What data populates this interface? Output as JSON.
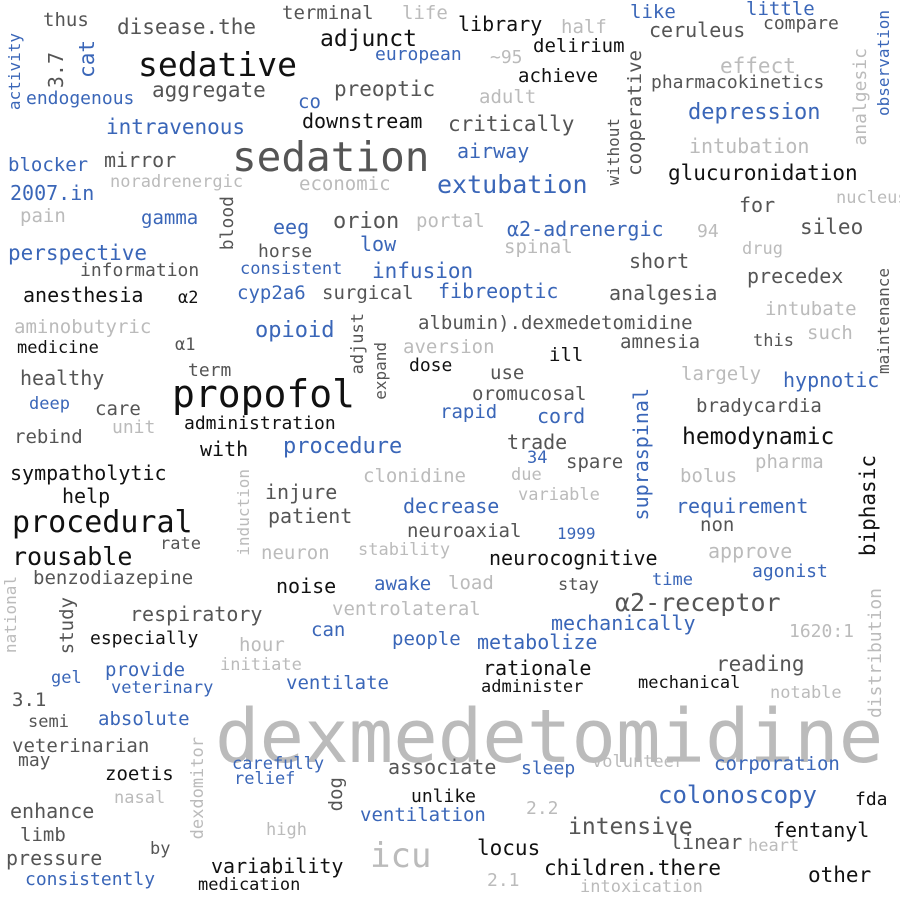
{
  "palette": {
    "black": "#111111",
    "dark_gray": "#555555",
    "light_gray": "#bbbbbb",
    "blue": "#3a66b8"
  },
  "words": [
    {
      "text": "dexmedetomidine",
      "color": "light_gray",
      "vertical": false
    },
    {
      "text": "sedation",
      "color": "dark_gray",
      "vertical": false
    },
    {
      "text": "propofol",
      "color": "black",
      "vertical": false
    },
    {
      "text": "sedative",
      "color": "black",
      "vertical": false
    },
    {
      "text": "icu",
      "color": "light_gray",
      "vertical": false
    },
    {
      "text": "procedural",
      "color": "black",
      "vertical": false
    },
    {
      "text": "rousable",
      "color": "black",
      "vertical": false
    },
    {
      "text": "extubation",
      "color": "blue",
      "vertical": false
    },
    {
      "text": "α2-receptor",
      "color": "dark_gray",
      "vertical": false
    },
    {
      "text": "colonoscopy",
      "color": "blue",
      "vertical": false
    },
    {
      "text": "intensive",
      "color": "dark_gray",
      "vertical": false
    },
    {
      "text": "hemodynamic",
      "color": "black",
      "vertical": false
    },
    {
      "text": "intravenous",
      "color": "blue",
      "vertical": false
    },
    {
      "text": "depression",
      "color": "blue",
      "vertical": false
    },
    {
      "text": "adjunct",
      "color": "black",
      "vertical": false
    },
    {
      "text": "glucuronidation",
      "color": "black",
      "vertical": false
    },
    {
      "text": "critically",
      "color": "dark_gray",
      "vertical": false
    },
    {
      "text": "downstream",
      "color": "black",
      "vertical": false
    },
    {
      "text": "aggregate",
      "color": "dark_gray",
      "vertical": false
    },
    {
      "text": "preoptic",
      "color": "dark_gray",
      "vertical": false
    },
    {
      "text": "achieve",
      "color": "black",
      "vertical": false
    },
    {
      "text": "delirium",
      "color": "black",
      "vertical": false
    },
    {
      "text": "library",
      "color": "black",
      "vertical": false
    },
    {
      "text": "ceruleus",
      "color": "dark_gray",
      "vertical": false
    },
    {
      "text": "disease.the",
      "color": "dark_gray",
      "vertical": false
    },
    {
      "text": "terminal",
      "color": "dark_gray",
      "vertical": false
    },
    {
      "text": "life",
      "color": "light_gray",
      "vertical": false
    },
    {
      "text": "half",
      "color": "light_gray",
      "vertical": false
    },
    {
      "text": "like",
      "color": "blue",
      "vertical": false
    },
    {
      "text": "little",
      "color": "blue",
      "vertical": false
    },
    {
      "text": "compare",
      "color": "dark_gray",
      "vertical": false
    },
    {
      "text": "effect",
      "color": "light_gray",
      "vertical": false
    },
    {
      "text": "pharmacokinetics",
      "color": "dark_gray",
      "vertical": false
    },
    {
      "text": "thus",
      "color": "dark_gray",
      "vertical": false
    },
    {
      "text": "european",
      "color": "blue",
      "vertical": false
    },
    {
      "text": "~95",
      "color": "light_gray",
      "vertical": false
    },
    {
      "text": "adult",
      "color": "light_gray",
      "vertical": false
    },
    {
      "text": "co",
      "color": "blue",
      "vertical": false
    },
    {
      "text": "endogenous",
      "color": "blue",
      "vertical": false
    },
    {
      "text": "intubation",
      "color": "light_gray",
      "vertical": false
    },
    {
      "text": "airway",
      "color": "blue",
      "vertical": false
    },
    {
      "text": "mirror",
      "color": "dark_gray",
      "vertical": false
    },
    {
      "text": "blocker",
      "color": "blue",
      "vertical": false
    },
    {
      "text": "noradrenergic",
      "color": "light_gray",
      "vertical": false
    },
    {
      "text": "economic",
      "color": "light_gray",
      "vertical": false
    },
    {
      "text": "2007.in",
      "color": "blue",
      "vertical": false
    },
    {
      "text": "pain",
      "color": "light_gray",
      "vertical": false
    },
    {
      "text": "gamma",
      "color": "blue",
      "vertical": false
    },
    {
      "text": "eeg",
      "color": "blue",
      "vertical": false
    },
    {
      "text": "orion",
      "color": "dark_gray",
      "vertical": false
    },
    {
      "text": "portal",
      "color": "light_gray",
      "vertical": false
    },
    {
      "text": "α2-adrenergic",
      "color": "blue",
      "vertical": false
    },
    {
      "text": "94",
      "color": "light_gray",
      "vertical": false
    },
    {
      "text": "for",
      "color": "dark_gray",
      "vertical": false
    },
    {
      "text": "nucleus",
      "color": "light_gray",
      "vertical": false
    },
    {
      "text": "sileo",
      "color": "dark_gray",
      "vertical": false
    },
    {
      "text": "perspective",
      "color": "blue",
      "vertical": false
    },
    {
      "text": "horse",
      "color": "dark_gray",
      "vertical": false
    },
    {
      "text": "low",
      "color": "blue",
      "vertical": false
    },
    {
      "text": "spinal",
      "color": "light_gray",
      "vertical": false
    },
    {
      "text": "short",
      "color": "dark_gray",
      "vertical": false
    },
    {
      "text": "drug",
      "color": "light_gray",
      "vertical": false
    },
    {
      "text": "information",
      "color": "dark_gray",
      "vertical": false
    },
    {
      "text": "consistent",
      "color": "blue",
      "vertical": false
    },
    {
      "text": "infusion",
      "color": "blue",
      "vertical": false
    },
    {
      "text": "precedex",
      "color": "dark_gray",
      "vertical": false
    },
    {
      "text": "anesthesia",
      "color": "black",
      "vertical": false
    },
    {
      "text": "α2",
      "color": "black",
      "vertical": false
    },
    {
      "text": "cyp2a6",
      "color": "blue",
      "vertical": false
    },
    {
      "text": "surgical",
      "color": "dark_gray",
      "vertical": false
    },
    {
      "text": "fibreoptic",
      "color": "blue",
      "vertical": false
    },
    {
      "text": "analgesia",
      "color": "dark_gray",
      "vertical": false
    },
    {
      "text": "intubate",
      "color": "light_gray",
      "vertical": false
    },
    {
      "text": "aminobutyric",
      "color": "light_gray",
      "vertical": false
    },
    {
      "text": "opioid",
      "color": "blue",
      "vertical": false
    },
    {
      "text": "albumin).dexmedetomidine",
      "color": "dark_gray",
      "vertical": false
    },
    {
      "text": "such",
      "color": "light_gray",
      "vertical": false
    },
    {
      "text": "medicine",
      "color": "black",
      "vertical": false
    },
    {
      "text": "α1",
      "color": "dark_gray",
      "vertical": false
    },
    {
      "text": "aversion",
      "color": "light_gray",
      "vertical": false
    },
    {
      "text": "amnesia",
      "color": "dark_gray",
      "vertical": false
    },
    {
      "text": "this",
      "color": "dark_gray",
      "vertical": false
    },
    {
      "text": "ill",
      "color": "black",
      "vertical": false
    },
    {
      "text": "dose",
      "color": "black",
      "vertical": false
    },
    {
      "text": "term",
      "color": "dark_gray",
      "vertical": false
    },
    {
      "text": "healthy",
      "color": "dark_gray",
      "vertical": false
    },
    {
      "text": "use",
      "color": "dark_gray",
      "vertical": false
    },
    {
      "text": "largely",
      "color": "light_gray",
      "vertical": false
    },
    {
      "text": "hypnotic",
      "color": "blue",
      "vertical": false
    },
    {
      "text": "oromucosal",
      "color": "dark_gray",
      "vertical": false
    },
    {
      "text": "deep",
      "color": "blue",
      "vertical": false
    },
    {
      "text": "care",
      "color": "dark_gray",
      "vertical": false
    },
    {
      "text": "rapid",
      "color": "blue",
      "vertical": false
    },
    {
      "text": "cord",
      "color": "blue",
      "vertical": false
    },
    {
      "text": "bradycardia",
      "color": "dark_gray",
      "vertical": false
    },
    {
      "text": "unit",
      "color": "light_gray",
      "vertical": false
    },
    {
      "text": "administration",
      "color": "black",
      "vertical": false
    },
    {
      "text": "rebind",
      "color": "dark_gray",
      "vertical": false
    },
    {
      "text": "with",
      "color": "black",
      "vertical": false
    },
    {
      "text": "procedure",
      "color": "blue",
      "vertical": false
    },
    {
      "text": "trade",
      "color": "dark_gray",
      "vertical": false
    },
    {
      "text": "34",
      "color": "blue",
      "vertical": false
    },
    {
      "text": "spare",
      "color": "dark_gray",
      "vertical": false
    },
    {
      "text": "pharma",
      "color": "light_gray",
      "vertical": false
    },
    {
      "text": "sympatholytic",
      "color": "black",
      "vertical": false
    },
    {
      "text": "clonidine",
      "color": "light_gray",
      "vertical": false
    },
    {
      "text": "due",
      "color": "light_gray",
      "vertical": false
    },
    {
      "text": "bolus",
      "color": "light_gray",
      "vertical": false
    },
    {
      "text": "help",
      "color": "black",
      "vertical": false
    },
    {
      "text": "injure",
      "color": "dark_gray",
      "vertical": false
    },
    {
      "text": "variable",
      "color": "light_gray",
      "vertical": false
    },
    {
      "text": "decrease",
      "color": "blue",
      "vertical": false
    },
    {
      "text": "requirement",
      "color": "blue",
      "vertical": false
    },
    {
      "text": "patient",
      "color": "dark_gray",
      "vertical": false
    },
    {
      "text": "non",
      "color": "dark_gray",
      "vertical": false
    },
    {
      "text": "neuroaxial",
      "color": "dark_gray",
      "vertical": false
    },
    {
      "text": "1999",
      "color": "blue",
      "vertical": false
    },
    {
      "text": "rate",
      "color": "dark_gray",
      "vertical": false
    },
    {
      "text": "neuron",
      "color": "light_gray",
      "vertical": false
    },
    {
      "text": "stability",
      "color": "light_gray",
      "vertical": false
    },
    {
      "text": "neurocognitive",
      "color": "black",
      "vertical": false
    },
    {
      "text": "approve",
      "color": "light_gray",
      "vertical": false
    },
    {
      "text": "benzodiazepine",
      "color": "dark_gray",
      "vertical": false
    },
    {
      "text": "noise",
      "color": "black",
      "vertical": false
    },
    {
      "text": "awake",
      "color": "blue",
      "vertical": false
    },
    {
      "text": "load",
      "color": "light_gray",
      "vertical": false
    },
    {
      "text": "stay",
      "color": "dark_gray",
      "vertical": false
    },
    {
      "text": "time",
      "color": "blue",
      "vertical": false
    },
    {
      "text": "agonist",
      "color": "blue",
      "vertical": false
    },
    {
      "text": "respiratory",
      "color": "dark_gray",
      "vertical": false
    },
    {
      "text": "ventrolateral",
      "color": "light_gray",
      "vertical": false
    },
    {
      "text": "mechanically",
      "color": "blue",
      "vertical": false
    },
    {
      "text": "1620:1",
      "color": "light_gray",
      "vertical": false
    },
    {
      "text": "especially",
      "color": "black",
      "vertical": false
    },
    {
      "text": "hour",
      "color": "light_gray",
      "vertical": false
    },
    {
      "text": "can",
      "color": "blue",
      "vertical": false
    },
    {
      "text": "people",
      "color": "blue",
      "vertical": false
    },
    {
      "text": "metabolize",
      "color": "blue",
      "vertical": false
    },
    {
      "text": "reading",
      "color": "dark_gray",
      "vertical": false
    },
    {
      "text": "provide",
      "color": "blue",
      "vertical": false
    },
    {
      "text": "initiate",
      "color": "light_gray",
      "vertical": false
    },
    {
      "text": "rationale",
      "color": "black",
      "vertical": false
    },
    {
      "text": "gel",
      "color": "blue",
      "vertical": false
    },
    {
      "text": "veterinary",
      "color": "blue",
      "vertical": false
    },
    {
      "text": "ventilate",
      "color": "blue",
      "vertical": false
    },
    {
      "text": "administer",
      "color": "black",
      "vertical": false
    },
    {
      "text": "mechanical",
      "color": "black",
      "vertical": false
    },
    {
      "text": "notable",
      "color": "light_gray",
      "vertical": false
    },
    {
      "text": "3.1",
      "color": "dark_gray",
      "vertical": false
    },
    {
      "text": "semi",
      "color": "dark_gray",
      "vertical": false
    },
    {
      "text": "absolute",
      "color": "blue",
      "vertical": false
    },
    {
      "text": "veterinarian",
      "color": "dark_gray",
      "vertical": false
    },
    {
      "text": "may",
      "color": "dark_gray",
      "vertical": false
    },
    {
      "text": "carefully",
      "color": "blue",
      "vertical": false
    },
    {
      "text": "relief",
      "color": "blue",
      "vertical": false
    },
    {
      "text": "associate",
      "color": "dark_gray",
      "vertical": false
    },
    {
      "text": "sleep",
      "color": "blue",
      "vertical": false
    },
    {
      "text": "volunteer",
      "color": "light_gray",
      "vertical": false
    },
    {
      "text": "corporation",
      "color": "blue",
      "vertical": false
    },
    {
      "text": "zoetis",
      "color": "black",
      "vertical": false
    },
    {
      "text": "nasal",
      "color": "light_gray",
      "vertical": false
    },
    {
      "text": "unlike",
      "color": "black",
      "vertical": false
    },
    {
      "text": "2.2",
      "color": "light_gray",
      "vertical": false
    },
    {
      "text": "fda",
      "color": "black",
      "vertical": false
    },
    {
      "text": "enhance",
      "color": "dark_gray",
      "vertical": false
    },
    {
      "text": "ventilation",
      "color": "blue",
      "vertical": false
    },
    {
      "text": "limb",
      "color": "dark_gray",
      "vertical": false
    },
    {
      "text": "high",
      "color": "light_gray",
      "vertical": false
    },
    {
      "text": "fentanyl",
      "color": "black",
      "vertical": false
    },
    {
      "text": "linear",
      "color": "dark_gray",
      "vertical": false
    },
    {
      "text": "locus",
      "color": "black",
      "vertical": false
    },
    {
      "text": "heart",
      "color": "light_gray",
      "vertical": false
    },
    {
      "text": "pressure",
      "color": "dark_gray",
      "vertical": false
    },
    {
      "text": "by",
      "color": "dark_gray",
      "vertical": false
    },
    {
      "text": "variability",
      "color": "black",
      "vertical": false
    },
    {
      "text": "children.there",
      "color": "black",
      "vertical": false
    },
    {
      "text": "other",
      "color": "black",
      "vertical": false
    },
    {
      "text": "consistently",
      "color": "blue",
      "vertical": false
    },
    {
      "text": "medication",
      "color": "black",
      "vertical": false
    },
    {
      "text": "2.1",
      "color": "light_gray",
      "vertical": false
    },
    {
      "text": "intoxication",
      "color": "light_gray",
      "vertical": false
    },
    {
      "text": "3.7",
      "color": "dark_gray",
      "vertical": true
    },
    {
      "text": "cat",
      "color": "blue",
      "vertical": true
    },
    {
      "text": "activity",
      "color": "blue",
      "vertical": true
    },
    {
      "text": "without",
      "color": "dark_gray",
      "vertical": true
    },
    {
      "text": "cooperative",
      "color": "dark_gray",
      "vertical": true
    },
    {
      "text": "analgesic",
      "color": "light_gray",
      "vertical": true
    },
    {
      "text": "observation",
      "color": "blue",
      "vertical": true
    },
    {
      "text": "blood",
      "color": "dark_gray",
      "vertical": true
    },
    {
      "text": "maintenance",
      "color": "dark_gray",
      "vertical": true
    },
    {
      "text": "adjust",
      "color": "dark_gray",
      "vertical": true
    },
    {
      "text": "expand",
      "color": "dark_gray",
      "vertical": true
    },
    {
      "text": "supraspinal",
      "color": "blue",
      "vertical": true
    },
    {
      "text": "biphasic",
      "color": "black",
      "vertical": true
    },
    {
      "text": "induction",
      "color": "light_gray",
      "vertical": true
    },
    {
      "text": "study",
      "color": "dark_gray",
      "vertical": true
    },
    {
      "text": "national",
      "color": "light_gray",
      "vertical": true
    },
    {
      "text": "distribution",
      "color": "light_gray",
      "vertical": true
    },
    {
      "text": "dog",
      "color": "dark_gray",
      "vertical": true
    },
    {
      "text": "dexdomitor",
      "color": "light_gray",
      "vertical": true
    }
  ]
}
